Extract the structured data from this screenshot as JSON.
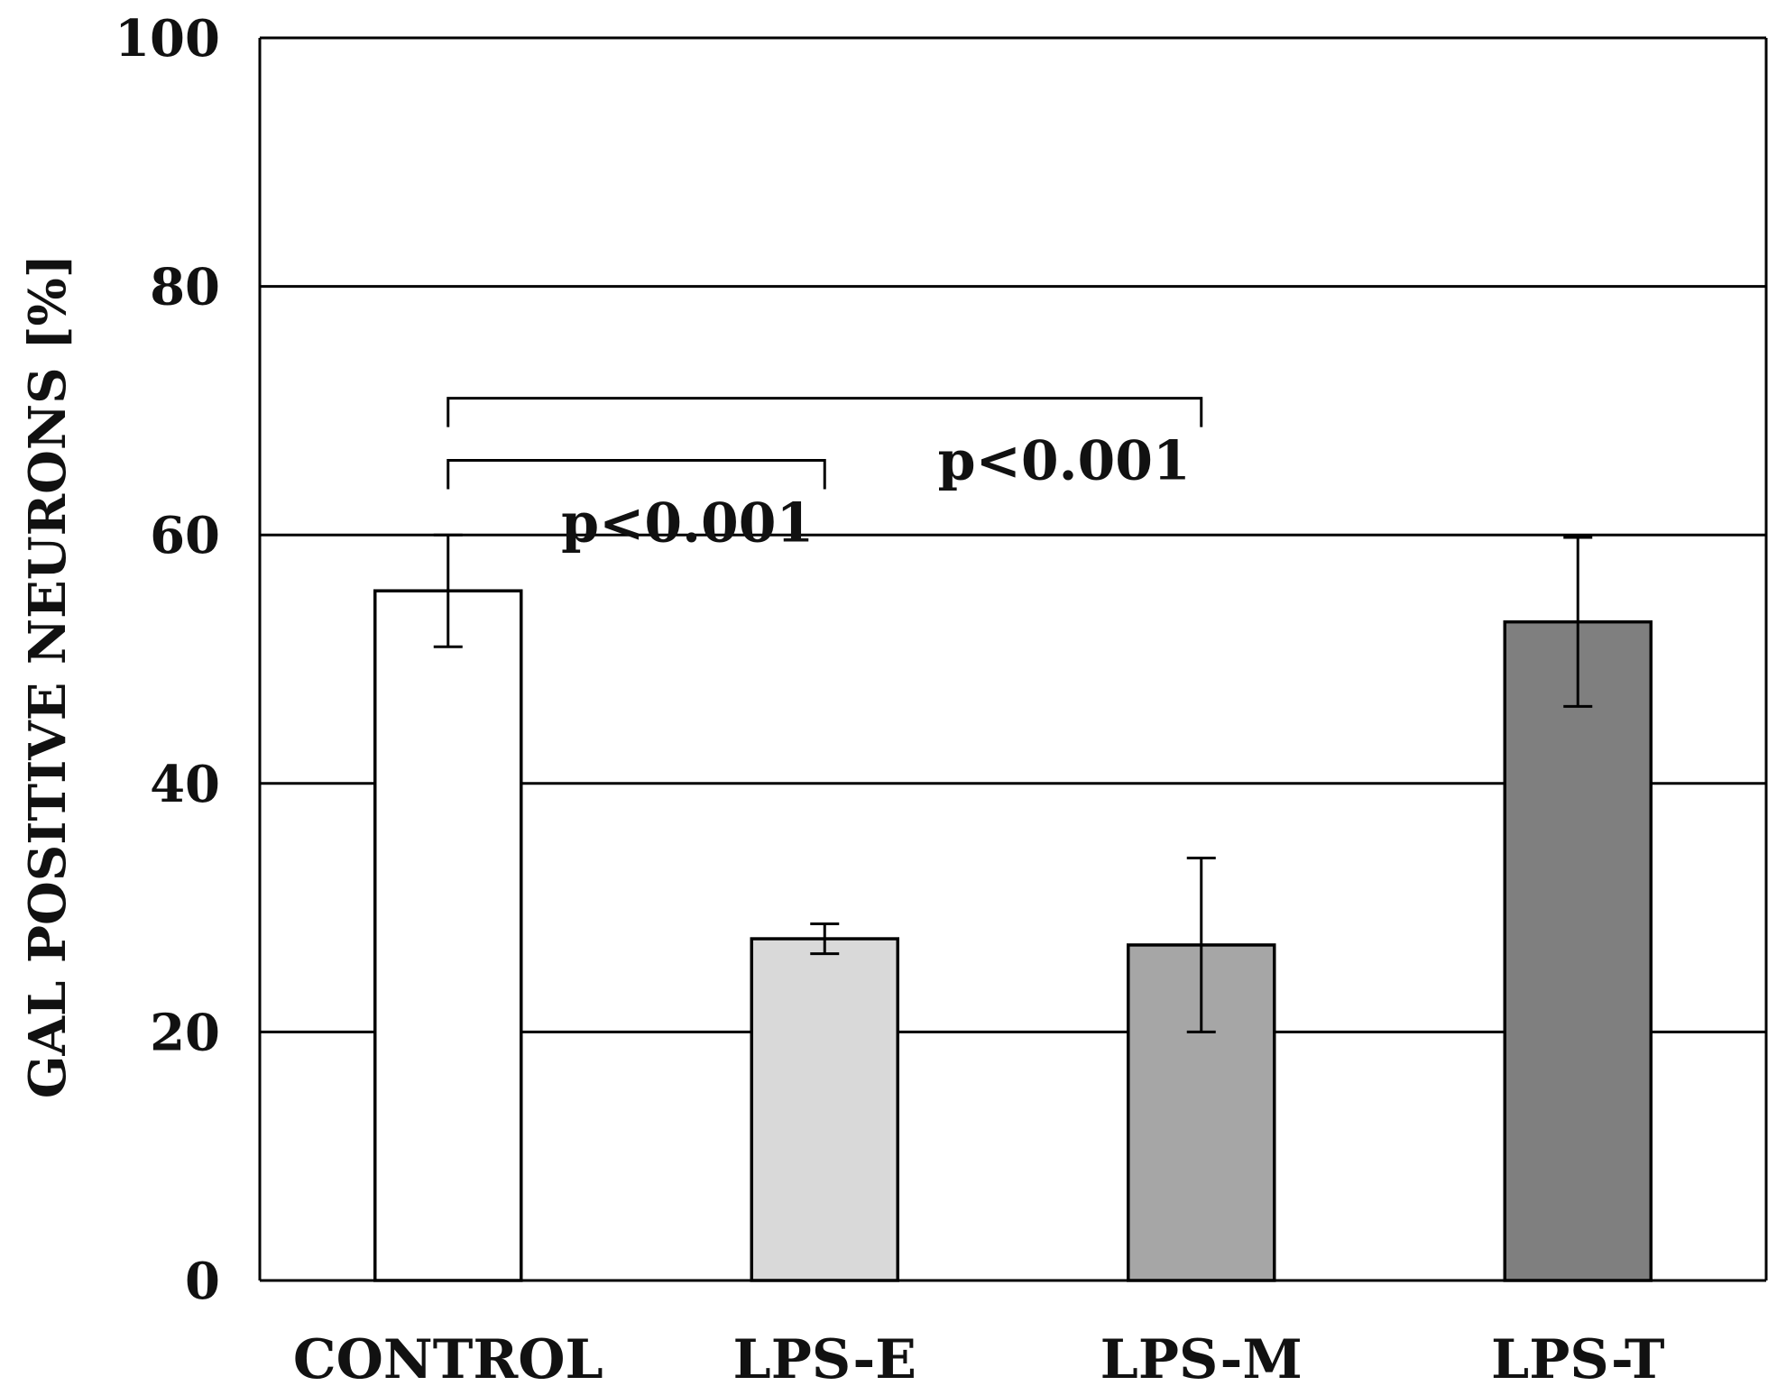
{
  "chart_data": {
    "type": "bar",
    "title": "",
    "xlabel": "",
    "ylabel": "GAL POSITIVE NEURONS [%]",
    "ylim": [
      0,
      100
    ],
    "yticks": [
      0,
      20,
      40,
      60,
      80,
      100
    ],
    "grid": true,
    "categories": [
      "CONTROL",
      "LPS-E",
      "LPS-M",
      "LPS-T"
    ],
    "values": [
      55.5,
      27.5,
      27,
      53
    ],
    "errors": [
      4.5,
      1.2,
      7,
      6.8
    ],
    "colors": [
      "#ffffff",
      "#d9d9d9",
      "#a6a6a6",
      "#7f7f7f"
    ],
    "annotations": [
      {
        "from": "CONTROL",
        "to": "LPS-E",
        "label": "p<0.001",
        "level": 66
      },
      {
        "from": "CONTROL",
        "to": "LPS-M",
        "label": "p<0.001",
        "level": 71
      }
    ]
  }
}
